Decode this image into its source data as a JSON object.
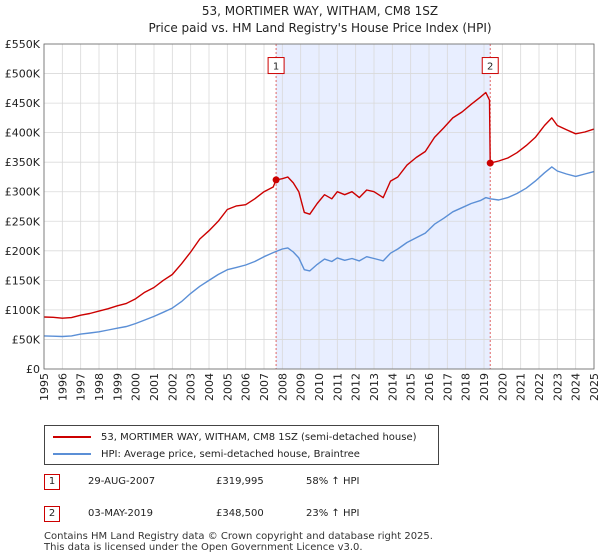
{
  "chart_data": {
    "type": "line",
    "title": "53, MORTIMER WAY, WITHAM, CM8 1SZ",
    "subtitle": "Price paid vs. HM Land Registry's House Price Index (HPI)",
    "xlabel": "",
    "ylabel": "",
    "xlim": [
      1995,
      2025
    ],
    "ylim": [
      0,
      550000
    ],
    "grid": true,
    "x_ticks": [
      "1995",
      "1996",
      "1997",
      "1998",
      "1999",
      "2000",
      "2001",
      "2002",
      "2003",
      "2004",
      "2005",
      "2006",
      "2007",
      "2008",
      "2009",
      "2010",
      "2011",
      "2012",
      "2013",
      "2014",
      "2015",
      "2016",
      "2017",
      "2018",
      "2019",
      "2020",
      "2021",
      "2022",
      "2023",
      "2024",
      "2025"
    ],
    "y_ticks": [
      {
        "value": 0,
        "label": "£0"
      },
      {
        "value": 50000,
        "label": "£50K"
      },
      {
        "value": 100000,
        "label": "£100K"
      },
      {
        "value": 150000,
        "label": "£150K"
      },
      {
        "value": 200000,
        "label": "£200K"
      },
      {
        "value": 250000,
        "label": "£250K"
      },
      {
        "value": 300000,
        "label": "£300K"
      },
      {
        "value": 350000,
        "label": "£350K"
      },
      {
        "value": 400000,
        "label": "£400K"
      },
      {
        "value": 450000,
        "label": "£450K"
      },
      {
        "value": 500000,
        "label": "£500K"
      },
      {
        "value": 550000,
        "label": "£550K"
      }
    ],
    "shaded_region": {
      "from": 2007.66,
      "to": 2019.34,
      "color": "#e8eeff"
    },
    "series": [
      {
        "name": "53, MORTIMER WAY, WITHAM, CM8 1SZ (semi-detached house)",
        "color": "#cc0000",
        "points": [
          [
            1995.0,
            88000
          ],
          [
            1995.5,
            87500
          ],
          [
            1996.0,
            86000
          ],
          [
            1996.5,
            87000
          ],
          [
            1997.0,
            91000
          ],
          [
            1997.5,
            94000
          ],
          [
            1998.0,
            98000
          ],
          [
            1998.5,
            102000
          ],
          [
            1999.0,
            107000
          ],
          [
            1999.5,
            111000
          ],
          [
            2000.0,
            119000
          ],
          [
            2000.5,
            130000
          ],
          [
            2001.0,
            138000
          ],
          [
            2001.5,
            150000
          ],
          [
            2002.0,
            160000
          ],
          [
            2002.5,
            178000
          ],
          [
            2003.0,
            198000
          ],
          [
            2003.5,
            220000
          ],
          [
            2004.0,
            234000
          ],
          [
            2004.5,
            250000
          ],
          [
            2005.0,
            270000
          ],
          [
            2005.5,
            276000
          ],
          [
            2006.0,
            278000
          ],
          [
            2006.5,
            288000
          ],
          [
            2007.0,
            300000
          ],
          [
            2007.5,
            308000
          ],
          [
            2007.66,
            319995
          ],
          [
            2008.0,
            322000
          ],
          [
            2008.3,
            325000
          ],
          [
            2008.6,
            315000
          ],
          [
            2008.9,
            300000
          ],
          [
            2009.2,
            265000
          ],
          [
            2009.5,
            262000
          ],
          [
            2009.9,
            280000
          ],
          [
            2010.3,
            295000
          ],
          [
            2010.7,
            288000
          ],
          [
            2011.0,
            300000
          ],
          [
            2011.4,
            295000
          ],
          [
            2011.8,
            300000
          ],
          [
            2012.2,
            290000
          ],
          [
            2012.6,
            303000
          ],
          [
            2013.0,
            300000
          ],
          [
            2013.5,
            290000
          ],
          [
            2013.9,
            318000
          ],
          [
            2014.3,
            325000
          ],
          [
            2014.8,
            345000
          ],
          [
            2015.3,
            358000
          ],
          [
            2015.8,
            368000
          ],
          [
            2016.3,
            392000
          ],
          [
            2016.8,
            408000
          ],
          [
            2017.3,
            425000
          ],
          [
            2017.8,
            435000
          ],
          [
            2018.3,
            448000
          ],
          [
            2018.8,
            460000
          ],
          [
            2019.1,
            468000
          ],
          [
            2019.3,
            455000
          ],
          [
            2019.34,
            348500
          ],
          [
            2019.8,
            352000
          ],
          [
            2020.3,
            357000
          ],
          [
            2020.8,
            366000
          ],
          [
            2021.3,
            378000
          ],
          [
            2021.8,
            392000
          ],
          [
            2022.3,
            412000
          ],
          [
            2022.7,
            425000
          ],
          [
            2023.0,
            412000
          ],
          [
            2023.5,
            405000
          ],
          [
            2024.0,
            398000
          ],
          [
            2024.5,
            401000
          ],
          [
            2025.0,
            406000
          ]
        ]
      },
      {
        "name": "HPI: Average price, semi-detached house, Braintree",
        "color": "#5b8fd6",
        "points": [
          [
            1995.0,
            56000
          ],
          [
            1995.5,
            55500
          ],
          [
            1996.0,
            55000
          ],
          [
            1996.5,
            56000
          ],
          [
            1997.0,
            59000
          ],
          [
            1997.5,
            61000
          ],
          [
            1998.0,
            63000
          ],
          [
            1998.5,
            66000
          ],
          [
            1999.0,
            69000
          ],
          [
            1999.5,
            72000
          ],
          [
            2000.0,
            77000
          ],
          [
            2000.5,
            83000
          ],
          [
            2001.0,
            89000
          ],
          [
            2001.5,
            96000
          ],
          [
            2002.0,
            103000
          ],
          [
            2002.5,
            114000
          ],
          [
            2003.0,
            128000
          ],
          [
            2003.5,
            140000
          ],
          [
            2004.0,
            150000
          ],
          [
            2004.5,
            160000
          ],
          [
            2005.0,
            168000
          ],
          [
            2005.5,
            172000
          ],
          [
            2006.0,
            176000
          ],
          [
            2006.5,
            182000
          ],
          [
            2007.0,
            190000
          ],
          [
            2007.5,
            197000
          ],
          [
            2008.0,
            203000
          ],
          [
            2008.3,
            205000
          ],
          [
            2008.6,
            198000
          ],
          [
            2008.9,
            188000
          ],
          [
            2009.2,
            168000
          ],
          [
            2009.5,
            166000
          ],
          [
            2009.9,
            177000
          ],
          [
            2010.3,
            186000
          ],
          [
            2010.7,
            182000
          ],
          [
            2011.0,
            188000
          ],
          [
            2011.4,
            184000
          ],
          [
            2011.8,
            187000
          ],
          [
            2012.2,
            183000
          ],
          [
            2012.6,
            190000
          ],
          [
            2013.0,
            187000
          ],
          [
            2013.5,
            183000
          ],
          [
            2013.9,
            196000
          ],
          [
            2014.3,
            203000
          ],
          [
            2014.8,
            214000
          ],
          [
            2015.3,
            222000
          ],
          [
            2015.8,
            230000
          ],
          [
            2016.3,
            245000
          ],
          [
            2016.8,
            255000
          ],
          [
            2017.3,
            266000
          ],
          [
            2017.8,
            273000
          ],
          [
            2018.3,
            280000
          ],
          [
            2018.8,
            285000
          ],
          [
            2019.1,
            290000
          ],
          [
            2019.34,
            288000
          ],
          [
            2019.8,
            286000
          ],
          [
            2020.3,
            290000
          ],
          [
            2020.8,
            297000
          ],
          [
            2021.3,
            306000
          ],
          [
            2021.8,
            318000
          ],
          [
            2022.3,
            332000
          ],
          [
            2022.7,
            342000
          ],
          [
            2023.0,
            335000
          ],
          [
            2023.5,
            330000
          ],
          [
            2024.0,
            326000
          ],
          [
            2024.5,
            330000
          ],
          [
            2025.0,
            334000
          ]
        ]
      }
    ],
    "annotations": [
      {
        "label": "1",
        "x": 2007.66,
        "y": 319995
      },
      {
        "label": "2",
        "x": 2019.34,
        "y": 348500
      }
    ]
  },
  "legend": {
    "items": [
      {
        "label": "53, MORTIMER WAY, WITHAM, CM8 1SZ (semi-detached house)",
        "color": "#cc0000"
      },
      {
        "label": "HPI: Average price, semi-detached house, Braintree",
        "color": "#5b8fd6"
      }
    ]
  },
  "sales": [
    {
      "num": "1",
      "date": "29-AUG-2007",
      "price": "£319,995",
      "hpi": "58% ↑ HPI"
    },
    {
      "num": "2",
      "date": "03-MAY-2019",
      "price": "£348,500",
      "hpi": "23% ↑ HPI"
    }
  ],
  "footer": {
    "line1": "Contains HM Land Registry data © Crown copyright and database right 2025.",
    "line2": "This data is licensed under the Open Government Licence v3.0."
  }
}
